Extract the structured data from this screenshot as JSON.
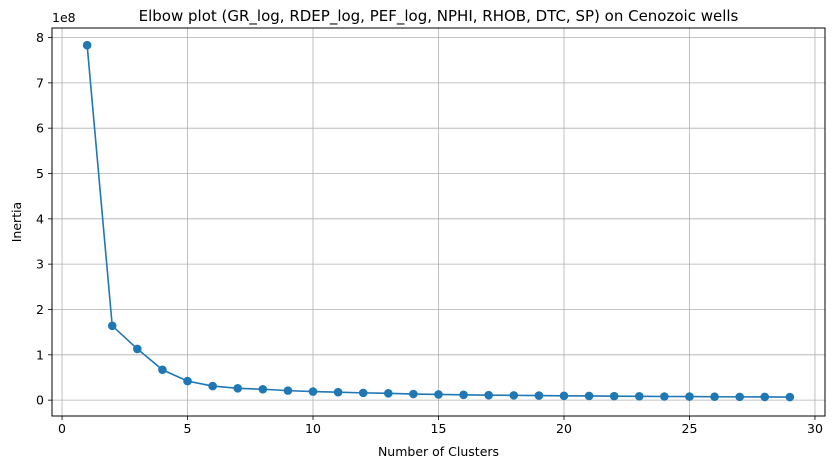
{
  "chart_data": {
    "type": "line",
    "title": "Elbow plot (GR_log, RDEP_log, PEF_log, NPHI, RHOB, DTC, SP) on Cenozoic wells",
    "xlabel": "Number of Clusters",
    "ylabel": "Inertia",
    "y_offset_label": "1e8",
    "x": [
      1,
      2,
      3,
      4,
      5,
      6,
      7,
      8,
      9,
      10,
      11,
      12,
      13,
      14,
      15,
      16,
      17,
      18,
      19,
      20,
      21,
      22,
      23,
      24,
      25,
      26,
      27,
      28,
      29
    ],
    "series": [
      {
        "values": [
          783000000,
          164000000,
          113000000,
          67000000,
          42000000,
          31000000,
          26000000,
          24000000,
          21000000,
          19000000,
          17500000,
          16000000,
          15000000,
          13500000,
          12500000,
          11800000,
          11000000,
          10500000,
          10000000,
          9500000,
          9200000,
          8800000,
          8500000,
          8000000,
          7800000,
          7500000,
          7200000,
          7000000,
          6800000
        ],
        "color": "#1f77b4",
        "marker": "circle"
      }
    ],
    "xlim": [
      -0.4,
      30.4
    ],
    "ylim": [
      -35000000,
      821000000
    ],
    "xticks": [
      0,
      5,
      10,
      15,
      20,
      25,
      30
    ],
    "xtick_labels": [
      "0",
      "5",
      "10",
      "15",
      "20",
      "25",
      "30"
    ],
    "yticks": [
      0,
      100000000,
      200000000,
      300000000,
      400000000,
      500000000,
      600000000,
      700000000,
      800000000
    ],
    "ytick_labels": [
      "0",
      "1",
      "2",
      "3",
      "4",
      "5",
      "6",
      "7",
      "8"
    ],
    "grid": true,
    "grid_color": "#b0b0b0",
    "legend": "none"
  }
}
